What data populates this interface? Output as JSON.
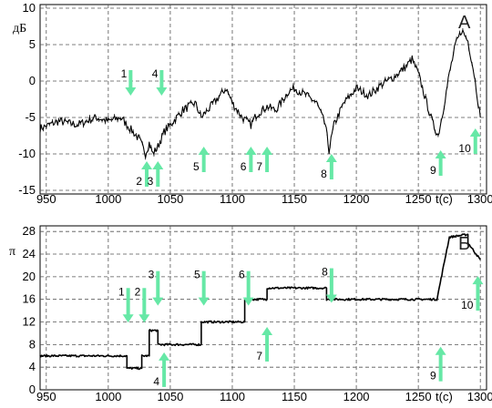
{
  "chart_data": [
    {
      "type": "line",
      "panel_label": "А",
      "ylabel": "дБ",
      "xlabel": "t(c)",
      "xlim": [
        945,
        1305
      ],
      "ylim": [
        -15.5,
        10.5
      ],
      "x_ticks": [
        950,
        1000,
        1050,
        1100,
        1150,
        1200,
        1250,
        1300
      ],
      "y_ticks": [
        10,
        5,
        0,
        -5,
        -10,
        -15
      ],
      "grid": true,
      "series": [
        {
          "x": [
            945,
            960,
            975,
            990,
            1000,
            1010,
            1020,
            1025,
            1030,
            1033,
            1036,
            1040,
            1045,
            1050,
            1060,
            1070,
            1075,
            1080,
            1090,
            1095,
            1100,
            1108,
            1115,
            1120,
            1128,
            1135,
            1145,
            1150,
            1160,
            1168,
            1175,
            1178,
            1182,
            1190,
            1200,
            1210,
            1220,
            1230,
            1240,
            1245,
            1250,
            1255,
            1262,
            1266,
            1270,
            1275,
            1280,
            1285,
            1290,
            1295,
            1300
          ],
          "y": [
            -6.5,
            -5.5,
            -6,
            -5,
            -5.5,
            -5,
            -7,
            -8,
            -10,
            -8.5,
            -10,
            -9,
            -7,
            -6,
            -4,
            -3,
            -5,
            -4,
            -2,
            -1,
            -3,
            -5,
            -6,
            -4.5,
            -3.5,
            -4,
            -1.5,
            -1,
            -2,
            -3,
            -6,
            -9.5,
            -6,
            -3,
            -1,
            -2,
            -0.5,
            0.5,
            2,
            3,
            1,
            -2,
            -6,
            -7.5,
            -4,
            1,
            5,
            7,
            5.5,
            1,
            -5
          ]
        }
      ],
      "annotations": [
        {
          "label": "1",
          "x": 1018,
          "y": 1.5,
          "direction": "down"
        },
        {
          "label": "4",
          "x": 1043,
          "y": 1.5,
          "direction": "down"
        },
        {
          "label": "2",
          "x": 1031,
          "y": -14.5,
          "direction": "up"
        },
        {
          "label": "3",
          "x": 1040,
          "y": -14.5,
          "direction": "up"
        },
        {
          "label": "5",
          "x": 1077,
          "y": -12.5,
          "direction": "up"
        },
        {
          "label": "6",
          "x": 1115,
          "y": -12.5,
          "direction": "up"
        },
        {
          "label": "7",
          "x": 1128,
          "y": -12.5,
          "direction": "up"
        },
        {
          "label": "8",
          "x": 1180,
          "y": -13.5,
          "direction": "up"
        },
        {
          "label": "9",
          "x": 1268,
          "y": -13,
          "direction": "up"
        },
        {
          "label": "10",
          "x": 1296,
          "y": -10,
          "direction": "up"
        }
      ]
    },
    {
      "type": "line",
      "panel_label": "Б",
      "ylabel": "π",
      "xlabel": "t(c)",
      "xlim": [
        945,
        1305
      ],
      "ylim": [
        0,
        29
      ],
      "x_ticks": [
        950,
        1000,
        1050,
        1100,
        1150,
        1200,
        1250,
        1300
      ],
      "y_ticks": [
        0,
        4,
        8,
        12,
        16,
        20,
        24,
        28
      ],
      "grid": true,
      "series": [
        {
          "x": [
            945,
            1015,
            1015,
            1027,
            1027,
            1033,
            1033,
            1040,
            1040,
            1075,
            1075,
            1110,
            1110,
            1128,
            1128,
            1176,
            1176,
            1265,
            1265,
            1275,
            1275,
            1290,
            1290,
            1300
          ],
          "y": [
            6,
            6,
            3.8,
            3.8,
            6,
            6,
            10.5,
            10.5,
            8,
            8,
            12,
            12,
            16,
            16,
            18,
            18,
            16,
            16,
            16,
            27,
            27,
            27.5,
            26,
            23
          ]
        }
      ],
      "annotations": [
        {
          "label": "1",
          "x": 1016,
          "y": 18,
          "direction": "down"
        },
        {
          "label": "2",
          "x": 1029,
          "y": 18,
          "direction": "down"
        },
        {
          "label": "3",
          "x": 1040,
          "y": 21,
          "direction": "down"
        },
        {
          "label": "4",
          "x": 1045,
          "y": 0.5,
          "direction": "up"
        },
        {
          "label": "5",
          "x": 1077,
          "y": 21,
          "direction": "down"
        },
        {
          "label": "6",
          "x": 1113,
          "y": 21,
          "direction": "down"
        },
        {
          "label": "7",
          "x": 1128,
          "y": 5,
          "direction": "up"
        },
        {
          "label": "8",
          "x": 1180,
          "y": 21.5,
          "direction": "down"
        },
        {
          "label": "9",
          "x": 1268,
          "y": 1.5,
          "direction": "up"
        },
        {
          "label": "10",
          "x": 1298,
          "y": 14,
          "direction": "up"
        }
      ]
    }
  ],
  "colors": {
    "arrow": "#66e8a6",
    "line": "#000000",
    "grid": "#555555"
  }
}
